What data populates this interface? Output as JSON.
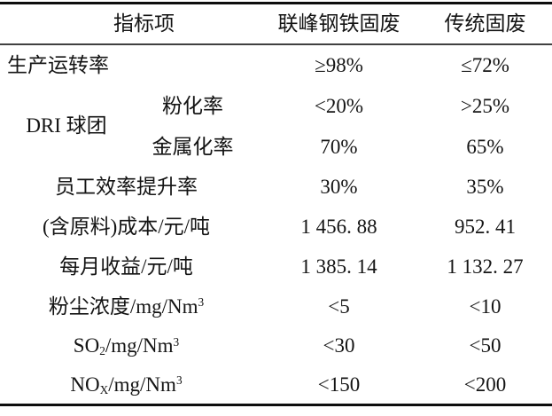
{
  "table": {
    "columns": {
      "indicator": "指标项",
      "lianfeng": "联峰钢铁固废",
      "traditional": "传统固废"
    },
    "rows": {
      "production_rate": {
        "label": "生产运转率",
        "lianfeng": "≥98%",
        "traditional": "≤72%"
      },
      "dri_group": {
        "label": "DRI 球团",
        "sub_rows": [
          {
            "label": "粉化率",
            "lianfeng": "<20%",
            "traditional": ">25%"
          },
          {
            "label": "金属化率",
            "lianfeng": "70%",
            "traditional": "65%"
          }
        ]
      },
      "staff_efficiency": {
        "label": "员工效率提升率",
        "lianfeng": "30%",
        "traditional": "35%"
      },
      "cost": {
        "label": "(含原料)成本/元/吨",
        "lianfeng": "1 456. 88",
        "traditional": "952. 41"
      },
      "monthly_income": {
        "label": "每月收益/元/吨",
        "lianfeng": "1 385. 14",
        "traditional": "1 132. 27"
      },
      "dust": {
        "label_rich": [
          {
            "t": "text",
            "v": "粉尘浓度/mg/Nm"
          },
          {
            "t": "sup",
            "v": "3"
          }
        ],
        "lianfeng": "<5",
        "traditional": "<10"
      },
      "so2": {
        "label_rich": [
          {
            "t": "text",
            "v": "SO"
          },
          {
            "t": "sub",
            "v": "2"
          },
          {
            "t": "text",
            "v": "/mg/Nm"
          },
          {
            "t": "sup",
            "v": "3"
          }
        ],
        "lianfeng": "<30",
        "traditional": "<50"
      },
      "nox": {
        "label_rich": [
          {
            "t": "text",
            "v": "NO"
          },
          {
            "t": "sub",
            "v": "X"
          },
          {
            "t": "text",
            "v": "/mg/Nm"
          },
          {
            "t": "sup",
            "v": "3"
          }
        ],
        "lianfeng": "<150",
        "traditional": "<200"
      }
    },
    "colors": {
      "rule_heavy": "#0d0d0d",
      "rule_light": "#404040",
      "text": "#141414",
      "background": "#ffffff"
    }
  }
}
